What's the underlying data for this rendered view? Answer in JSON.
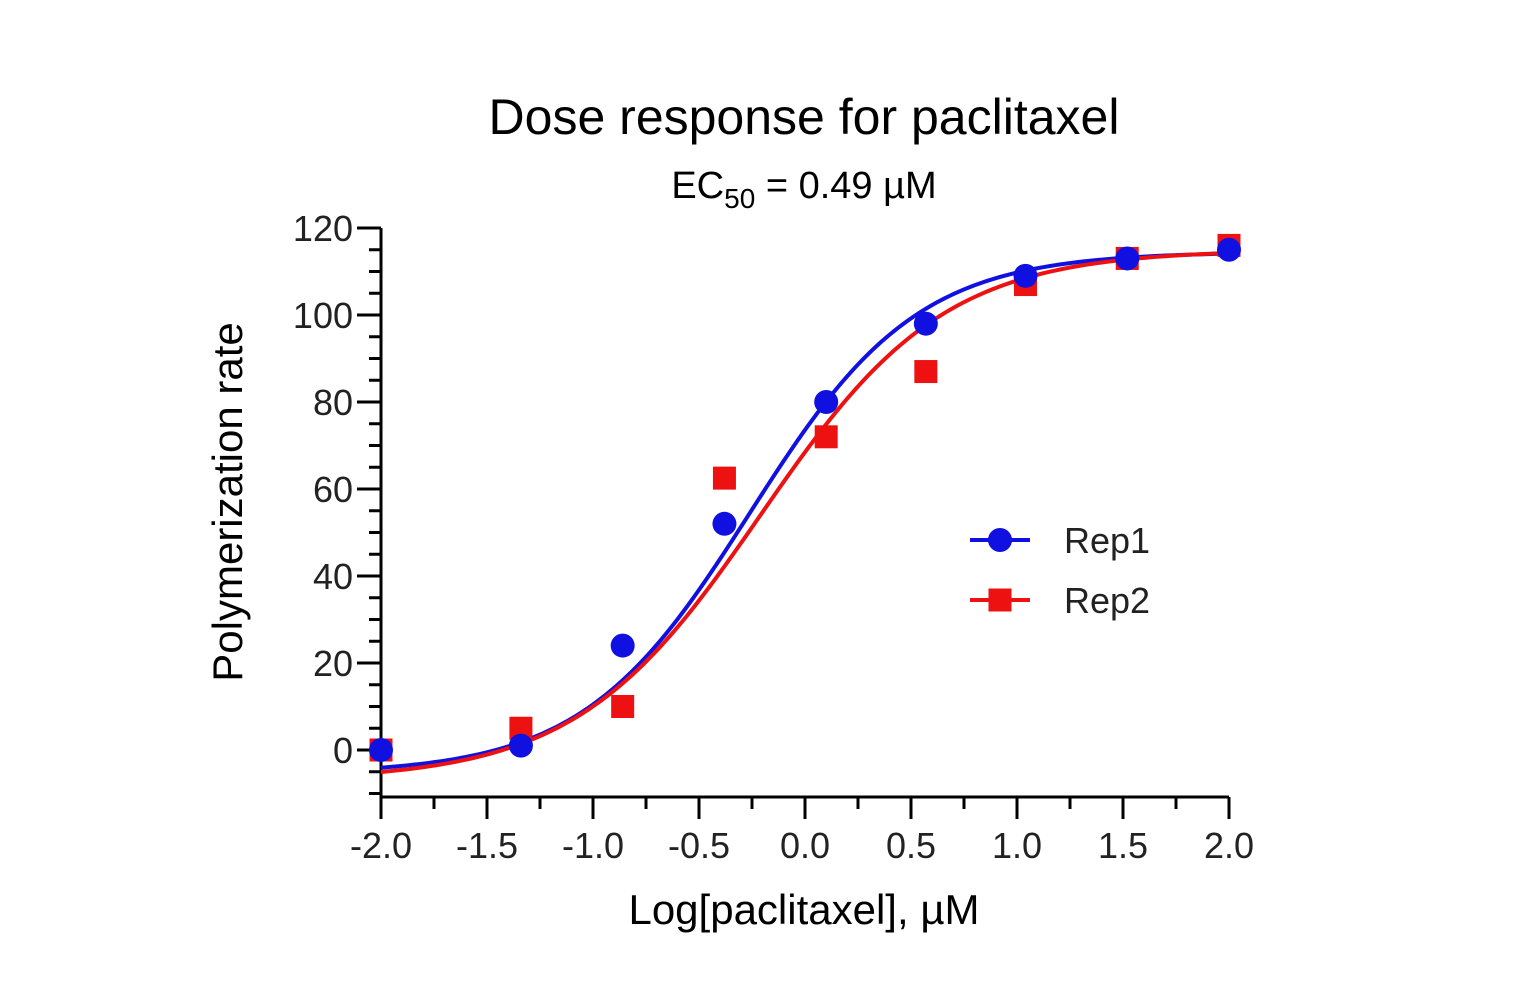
{
  "chart_data": {
    "type": "scatter",
    "title": "Dose response for paclitaxel",
    "subtitle": {
      "main": "EC",
      "subscript": "50",
      "rest": " = 0.49 µM"
    },
    "xlabel": "Log[paclitaxel], µM",
    "ylabel": "Polymerization rate",
    "xlim": [
      -2.0,
      2.0
    ],
    "ylim": [
      -10,
      120
    ],
    "x_ticks": [
      "-2.0",
      "-1.5",
      "-1.0",
      "-0.5",
      "0.0",
      "0.5",
      "1.0",
      "1.5",
      "2.0"
    ],
    "y_ticks": [
      "0",
      "20",
      "40",
      "60",
      "80",
      "100",
      "120"
    ],
    "legend": {
      "placement": "right-center"
    },
    "series": [
      {
        "name": "Rep1",
        "color": "#1010e0",
        "marker": "circle",
        "x": [
          -2.0,
          -1.34,
          -0.86,
          -0.38,
          0.1,
          0.57,
          1.04,
          1.52,
          2.0
        ],
        "y": [
          0,
          1,
          24,
          52,
          80,
          98,
          109,
          113,
          115
        ],
        "fit": {
          "bottom": -5.5,
          "top": 114.5,
          "log_ec50": -0.26,
          "hill": 1.1
        }
      },
      {
        "name": "Rep2",
        "color": "#ee1111",
        "marker": "square",
        "x": [
          -2.0,
          -1.34,
          -0.86,
          -0.38,
          0.1,
          0.57,
          1.04,
          1.52,
          2.0
        ],
        "y": [
          0,
          5,
          10,
          62.5,
          72,
          87,
          107,
          113,
          116
        ],
        "fit": {
          "bottom": -7,
          "top": 115,
          "log_ec50": -0.21,
          "hill": 1.0
        }
      }
    ]
  }
}
